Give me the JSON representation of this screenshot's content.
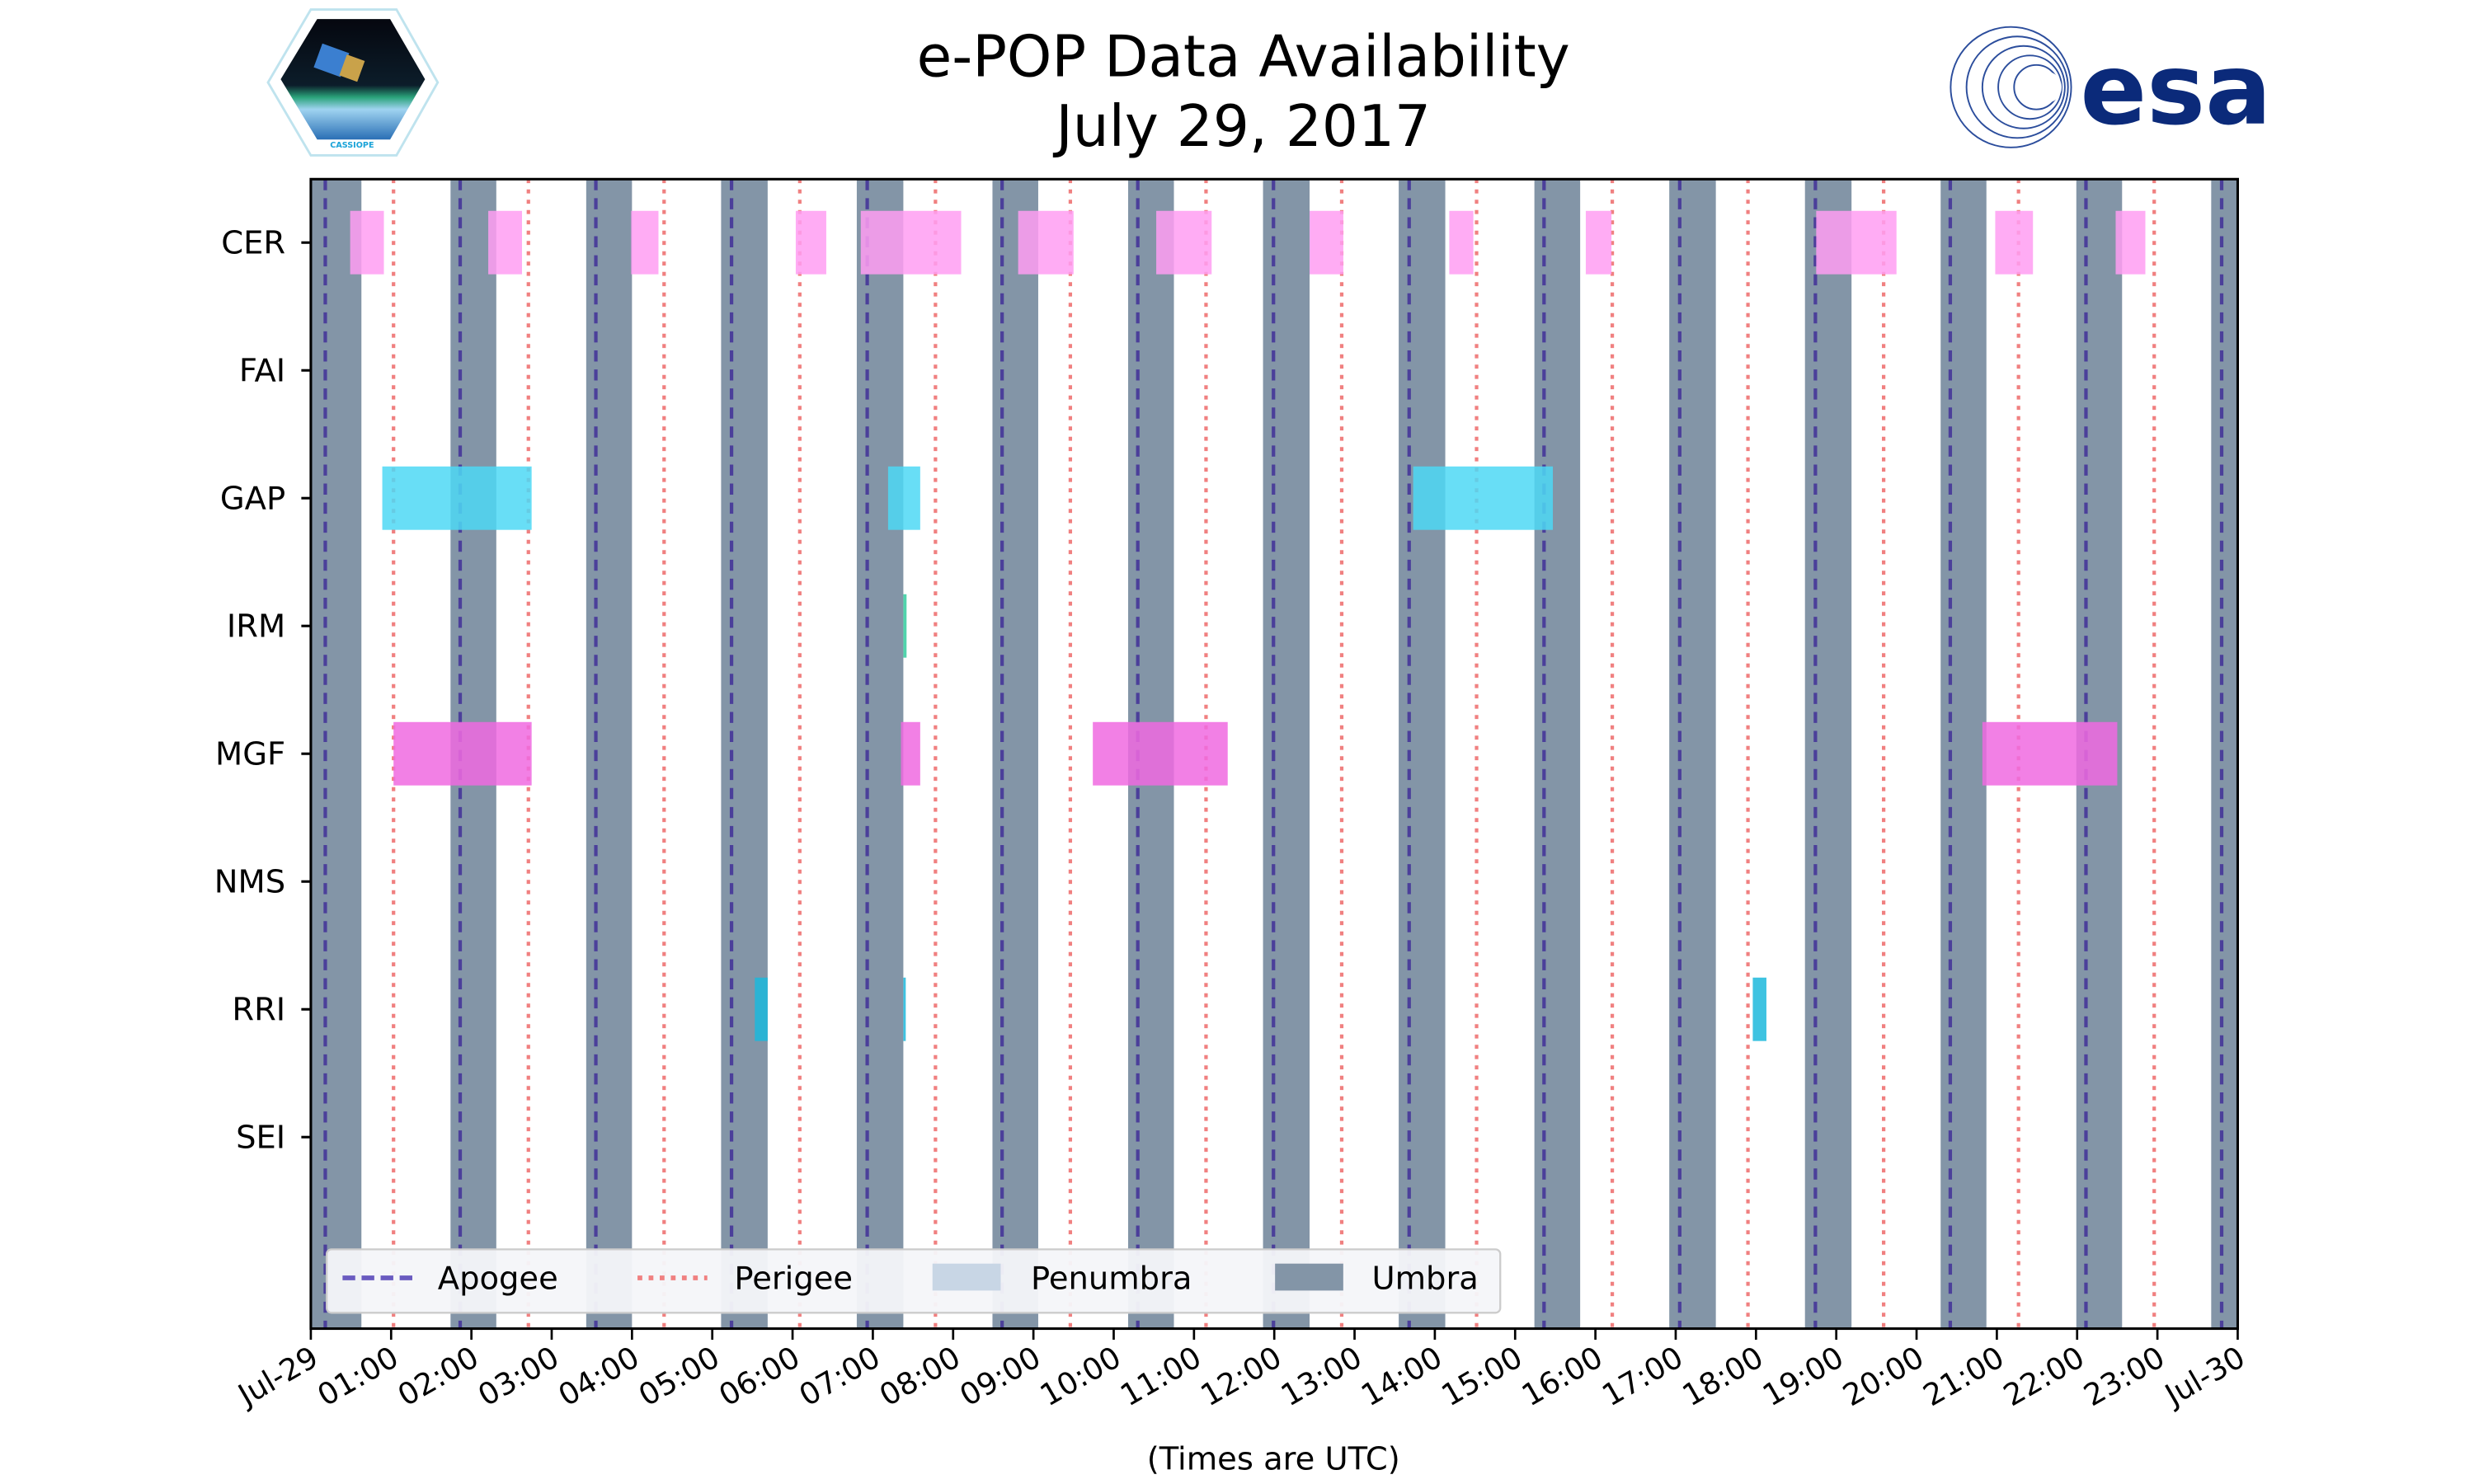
{
  "chart_data": {
    "type": "timeline",
    "title_line1": "e-POP Data Availability",
    "title_line2": "July 29, 2017",
    "xlabel": "(Times are UTC)",
    "xlim_hours": [
      0,
      24
    ],
    "x_tick_labels": [
      "Jul-29",
      "01:00",
      "02:00",
      "03:00",
      "04:00",
      "05:00",
      "06:00",
      "07:00",
      "08:00",
      "09:00",
      "10:00",
      "11:00",
      "12:00",
      "13:00",
      "14:00",
      "15:00",
      "16:00",
      "17:00",
      "18:00",
      "19:00",
      "20:00",
      "21:00",
      "22:00",
      "23:00",
      "Jul-30"
    ],
    "instruments": [
      "CER",
      "FAI",
      "GAP",
      "IRM",
      "MGF",
      "NMS",
      "RRI",
      "SEI"
    ],
    "colors": {
      "CER": "#ff9ef2",
      "GAP": "#4dd8f5",
      "IRM": "#33cc9e",
      "MGF": "#f06ae0",
      "RRI": "#1cb8dc",
      "apogee": "#4b3f9a",
      "perigee": "#f08080",
      "penumbra": "#c8d6e5",
      "umbra": "#8395a7"
    },
    "intervals_hours": {
      "CER": [
        [
          0.49,
          0.91
        ],
        [
          2.21,
          2.63
        ],
        [
          3.99,
          4.33
        ],
        [
          6.04,
          6.42
        ],
        [
          6.85,
          8.1
        ],
        [
          8.81,
          9.5
        ],
        [
          10.53,
          11.22
        ],
        [
          12.44,
          12.86
        ],
        [
          14.18,
          14.48
        ],
        [
          15.88,
          16.2
        ],
        [
          18.75,
          19.75
        ],
        [
          20.98,
          21.45
        ],
        [
          22.48,
          22.85
        ]
      ],
      "FAI": [],
      "GAP": [
        [
          0.89,
          2.75
        ],
        [
          7.19,
          7.59
        ],
        [
          13.73,
          15.47
        ]
      ],
      "IRM": [
        [
          7.38,
          7.42
        ]
      ],
      "MGF": [
        [
          1.03,
          2.75
        ],
        [
          7.35,
          7.59
        ],
        [
          9.74,
          11.42
        ],
        [
          20.82,
          22.5
        ]
      ],
      "NMS": [],
      "RRI": [
        [
          5.53,
          5.69
        ],
        [
          7.38,
          7.41
        ],
        [
          17.96,
          18.13
        ]
      ],
      "SEI": []
    },
    "umbra_hours": [
      [
        0,
        0.63
      ],
      [
        1.74,
        2.31
      ],
      [
        3.43,
        4.0
      ],
      [
        5.11,
        5.69
      ],
      [
        6.8,
        7.38
      ],
      [
        8.49,
        9.06
      ],
      [
        10.18,
        10.75
      ],
      [
        11.86,
        12.44
      ],
      [
        13.55,
        14.13
      ],
      [
        15.24,
        15.81
      ],
      [
        16.92,
        17.5
      ],
      [
        18.61,
        19.19
      ],
      [
        20.3,
        20.87
      ],
      [
        21.99,
        22.56
      ],
      [
        23.67,
        24
      ]
    ],
    "apogee_hours": [
      0.18,
      1.86,
      3.55,
      5.24,
      6.93,
      8.61,
      10.3,
      11.99,
      13.68,
      15.36,
      17.05,
      18.74,
      20.42,
      22.11,
      23.8
    ],
    "perigee_hours": [
      1.03,
      2.71,
      4.4,
      6.09,
      7.78,
      9.46,
      11.15,
      12.84,
      14.52,
      16.21,
      17.9,
      19.59,
      21.27,
      22.96
    ],
    "legend": {
      "placement": "bottom-left",
      "entries": [
        "Apogee",
        "Perigee",
        "Penumbra",
        "Umbra"
      ]
    }
  },
  "logos": {
    "left_text": "CASSIOPE",
    "right_text": "esa"
  }
}
